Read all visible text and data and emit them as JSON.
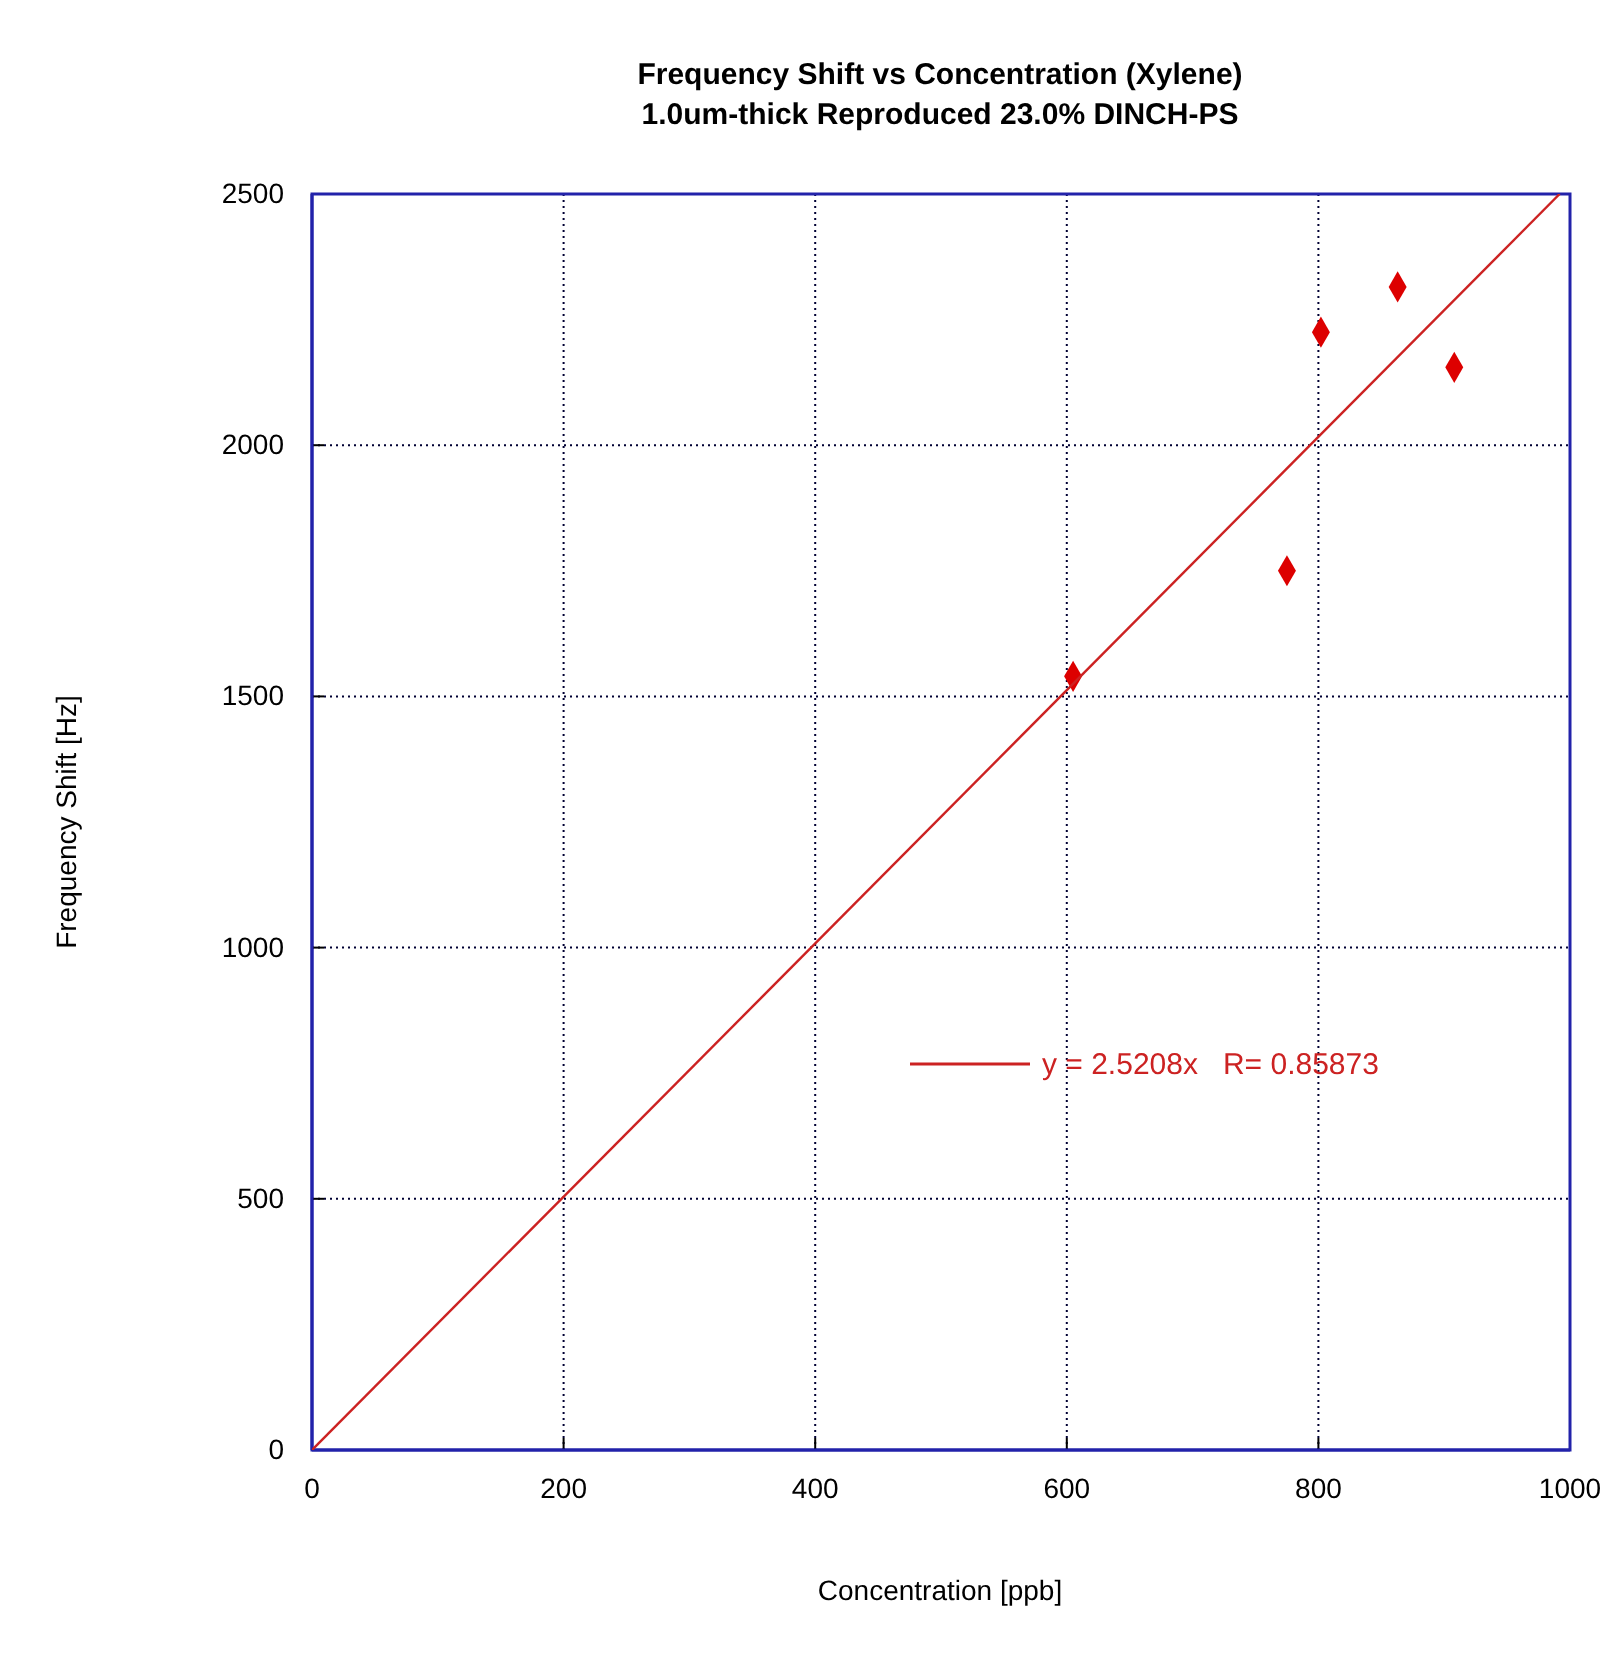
{
  "chart_data": {
    "type": "scatter",
    "title": "Frequency Shift vs Concentration (Xylene)",
    "subtitle": "1.0um-thick Reproduced 23.0% DINCH-PS",
    "xlabel": "Concentration [ppb]",
    "ylabel": "Frequency Shift [Hz]",
    "xlim": [
      0,
      1000
    ],
    "ylim": [
      0,
      2500
    ],
    "xticks": [
      0,
      200,
      400,
      600,
      800,
      1000
    ],
    "yticks": [
      0,
      500,
      1000,
      1500,
      2000,
      2500
    ],
    "grid": true,
    "legend": "right",
    "marker": "diamond",
    "series": [
      {
        "color": "#dd0000",
        "x": [
          605,
          775,
          802,
          863,
          908
        ],
        "values": [
          1540,
          1750,
          2225,
          2315,
          2155
        ]
      },
      {
        "type": "line",
        "name": "y = 2.5208x   R= 0.85873",
        "color": "#cc2222",
        "x": [
          0,
          991.75
        ],
        "values": [
          0,
          2500
        ],
        "marker": "none",
        "line_style": "solid"
      }
    ]
  }
}
